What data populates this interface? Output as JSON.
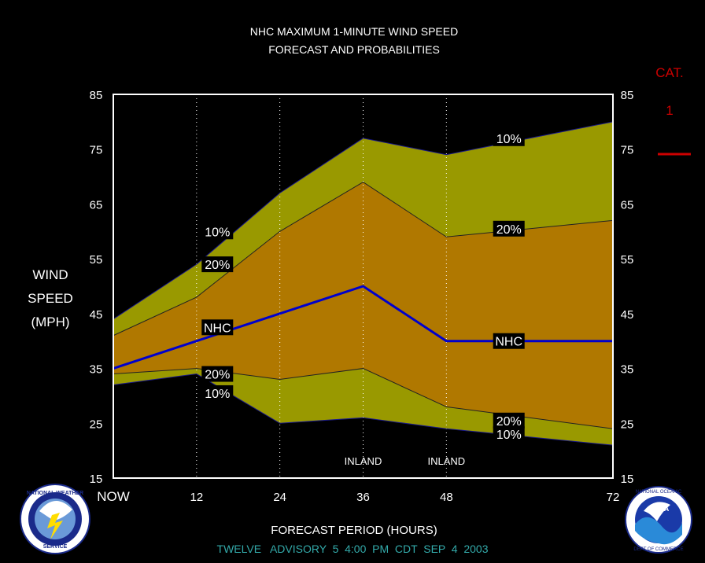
{
  "chart_data": {
    "type": "area",
    "title": "NHC MAXIMUM 1-MINUTE WIND SPEED",
    "subtitle": "FORECAST AND PROBABILITIES",
    "xlabel": "FORECAST PERIOD (HOURS)",
    "ylabel": [
      "WIND",
      "SPEED",
      "(MPH)"
    ],
    "x_ticks": [
      {
        "value": 0,
        "label": "NOW"
      },
      {
        "value": 12,
        "label": "12"
      },
      {
        "value": 24,
        "label": "24"
      },
      {
        "value": 36,
        "label": "36"
      },
      {
        "value": 48,
        "label": "48"
      },
      {
        "value": 72,
        "label": "72"
      }
    ],
    "xlim": [
      0,
      72
    ],
    "ylim": [
      15,
      85
    ],
    "y_ticks": [
      15,
      25,
      35,
      45,
      55,
      65,
      75,
      85
    ],
    "grid": "vertical dotted lines at 12, 24, 36, 48",
    "inland_markers": [
      {
        "x": 36,
        "label": "INLAND"
      },
      {
        "x": 48,
        "label": "INLAND"
      }
    ],
    "x": [
      0,
      12,
      24,
      36,
      48,
      72
    ],
    "series": [
      {
        "name": "10%",
        "role": "upper",
        "values": [
          44,
          54,
          67,
          77,
          74,
          80
        ]
      },
      {
        "name": "20%",
        "role": "upper",
        "values": [
          41,
          48,
          60,
          69,
          59,
          62
        ]
      },
      {
        "name": "NHC",
        "role": "forecast",
        "values": [
          35,
          40,
          45,
          50,
          40,
          40
        ]
      },
      {
        "name": "20%",
        "role": "lower",
        "values": [
          34,
          35,
          33,
          35,
          28,
          24
        ]
      },
      {
        "name": "10%",
        "role": "lower",
        "values": [
          32,
          34,
          25,
          26,
          24,
          21
        ]
      }
    ],
    "band_labels": [
      {
        "text": "10%",
        "x": 15,
        "y": 60
      },
      {
        "text": "20%",
        "x": 15,
        "y": 54
      },
      {
        "text": "NHC",
        "x": 15,
        "y": 42.5
      },
      {
        "text": "20%",
        "x": 15,
        "y": 34
      },
      {
        "text": "10%",
        "x": 15,
        "y": 30.5
      },
      {
        "text": "10%",
        "x": 57,
        "y": 77
      },
      {
        "text": "20%",
        "x": 57,
        "y": 60.5
      },
      {
        "text": "NHC",
        "x": 57,
        "y": 40
      },
      {
        "text": "20%",
        "x": 57,
        "y": 25.5
      },
      {
        "text": "10%",
        "x": 57,
        "y": 23
      }
    ],
    "category_legend": {
      "header": "CAT.",
      "value": "1",
      "color": "#cc0000"
    },
    "colors": {
      "outer_band": "#999900",
      "inner_band": "#b07800",
      "nhc_line": "#0000cc",
      "frame": "#ffffff",
      "title": "#ffffff",
      "footer": "#33aaaa"
    }
  },
  "footer": "TWELVE   ADVISORY  5  4:00  PM  CDT  SEP  4  2003",
  "logos": {
    "left": "national-weather-service-logo",
    "right": "noaa-logo"
  }
}
